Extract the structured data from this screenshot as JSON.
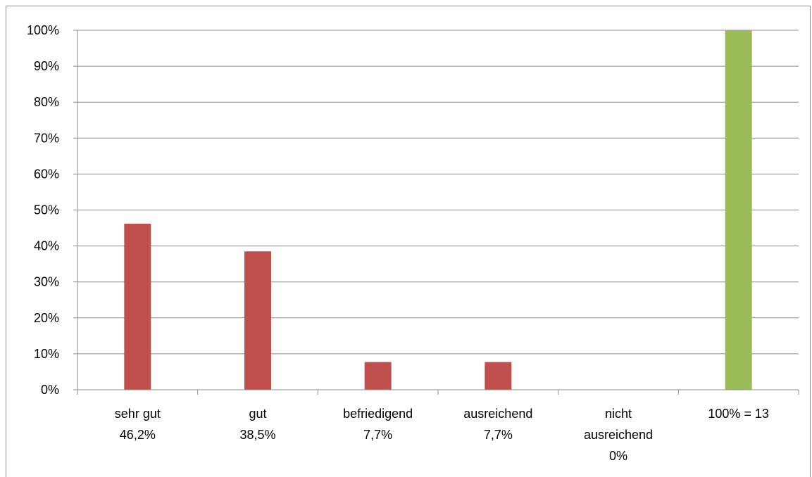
{
  "chart_data": {
    "type": "bar",
    "categories": [
      [
        "sehr gut",
        "46,2%"
      ],
      [
        "gut",
        "38,5%"
      ],
      [
        "befriedigend",
        "7,7%"
      ],
      [
        "ausreichend",
        "7,7%"
      ],
      [
        "nicht",
        "ausreichend",
        "0%"
      ],
      [
        "100% = 13"
      ]
    ],
    "values": [
      46.2,
      38.5,
      7.7,
      7.7,
      0,
      100
    ],
    "ylim": [
      0,
      100
    ],
    "yticks": [
      "0%",
      "10%",
      "20%",
      "30%",
      "40%",
      "50%",
      "60%",
      "70%",
      "80%",
      "90%",
      "100%"
    ],
    "grid": true,
    "legend": "none",
    "colors": [
      "#c0504d",
      "#c0504d",
      "#c0504d",
      "#c0504d",
      "#c0504d",
      "#9bbb59"
    ]
  }
}
